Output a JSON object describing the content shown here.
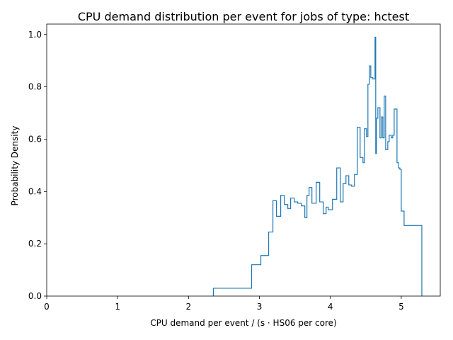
{
  "chart_data": {
    "type": "step",
    "title": "CPU demand distribution per event for jobs of type: hctest",
    "xlabel": "CPU demand per event / (s · HS06 per core)",
    "ylabel": "Probability Density",
    "xlim": [
      0,
      5.55
    ],
    "ylim": [
      0,
      1.04
    ],
    "xticks": [
      0,
      1,
      2,
      3,
      4,
      5
    ],
    "xtick_labels": [
      "0",
      "1",
      "2",
      "3",
      "4",
      "5"
    ],
    "yticks": [
      0.0,
      0.2,
      0.4,
      0.6,
      0.8,
      1.0
    ],
    "ytick_labels": [
      "0.0",
      "0.2",
      "0.4",
      "0.6",
      "0.8",
      "1.0"
    ],
    "grid": false,
    "color": "#1f77b4",
    "series": [
      {
        "edges": [
          2.35,
          2.89,
          3.02,
          3.13,
          3.19,
          3.24,
          3.3,
          3.35,
          3.4,
          3.44,
          3.49,
          3.54,
          3.59,
          3.64,
          3.67,
          3.7,
          3.74,
          3.8,
          3.85,
          3.9,
          3.94,
          3.97,
          4.03,
          4.09,
          4.14,
          4.18,
          4.22,
          4.26,
          4.3,
          4.34,
          4.38,
          4.42,
          4.46,
          4.48,
          4.51,
          4.53,
          4.55,
          4.57,
          4.6,
          4.63,
          4.64,
          4.65,
          4.67,
          4.7,
          4.72,
          4.74,
          4.76,
          4.78,
          4.81,
          4.83,
          4.86,
          4.88,
          4.9,
          4.94,
          4.96,
          4.98,
          5.0,
          5.04,
          5.07,
          5.14,
          5.29
        ],
        "values": [
          0.03,
          0.12,
          0.155,
          0.245,
          0.365,
          0.305,
          0.385,
          0.35,
          0.335,
          0.375,
          0.36,
          0.355,
          0.345,
          0.3,
          0.385,
          0.415,
          0.355,
          0.435,
          0.36,
          0.315,
          0.34,
          0.33,
          0.37,
          0.49,
          0.36,
          0.43,
          0.46,
          0.425,
          0.42,
          0.465,
          0.645,
          0.53,
          0.51,
          0.64,
          0.61,
          0.81,
          0.88,
          0.835,
          0.83,
          0.99,
          0.545,
          0.68,
          0.72,
          0.605,
          0.685,
          0.605,
          0.765,
          0.56,
          0.59,
          0.615,
          0.605,
          0.615,
          0.715,
          0.51,
          0.49,
          0.485,
          0.325,
          0.27,
          0.27,
          0.27
        ]
      }
    ]
  }
}
